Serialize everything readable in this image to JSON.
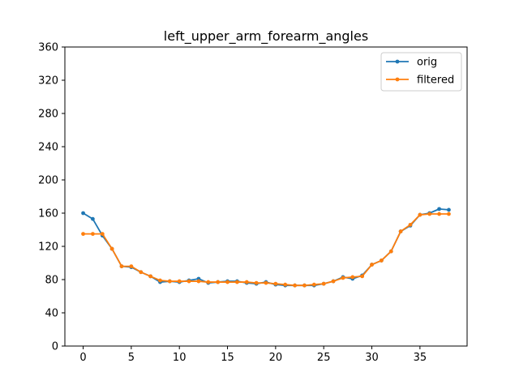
{
  "chart_data": {
    "type": "line",
    "title": "left_upper_arm_forearm_angles",
    "xlabel": "",
    "ylabel": "",
    "xlim": [
      -1.9,
      39.9
    ],
    "ylim": [
      0,
      360
    ],
    "x_ticks": [
      0,
      5,
      10,
      15,
      20,
      25,
      30,
      35
    ],
    "y_ticks": [
      0,
      40,
      80,
      120,
      160,
      200,
      240,
      280,
      320,
      360
    ],
    "grid": false,
    "legend_position": "top-right",
    "x": [
      0,
      1,
      2,
      3,
      4,
      5,
      6,
      7,
      8,
      9,
      10,
      11,
      12,
      13,
      14,
      15,
      16,
      17,
      18,
      19,
      20,
      21,
      22,
      23,
      24,
      25,
      26,
      27,
      28,
      29,
      30,
      31,
      32,
      33,
      34,
      35,
      36,
      37,
      38
    ],
    "series": [
      {
        "name": "orig",
        "color": "#1f77b4",
        "values": [
          160,
          153,
          133,
          117,
          96,
          95,
          89,
          84,
          77,
          78,
          77,
          79,
          81,
          76,
          77,
          78,
          78,
          76,
          75,
          77,
          74,
          73,
          73,
          73,
          73,
          75,
          78,
          83,
          81,
          85,
          98,
          103,
          114,
          138,
          145,
          158,
          160,
          165,
          164
        ]
      },
      {
        "name": "filtered",
        "color": "#ff7f0e",
        "values": [
          135,
          135,
          135,
          117,
          96,
          96,
          89,
          84,
          79,
          78,
          78,
          78,
          78,
          77,
          77,
          77,
          77,
          77,
          76,
          76,
          75,
          74,
          73,
          73,
          74,
          75,
          78,
          82,
          83,
          84,
          98,
          103,
          114,
          138,
          146,
          158,
          159,
          159,
          159
        ]
      }
    ]
  }
}
